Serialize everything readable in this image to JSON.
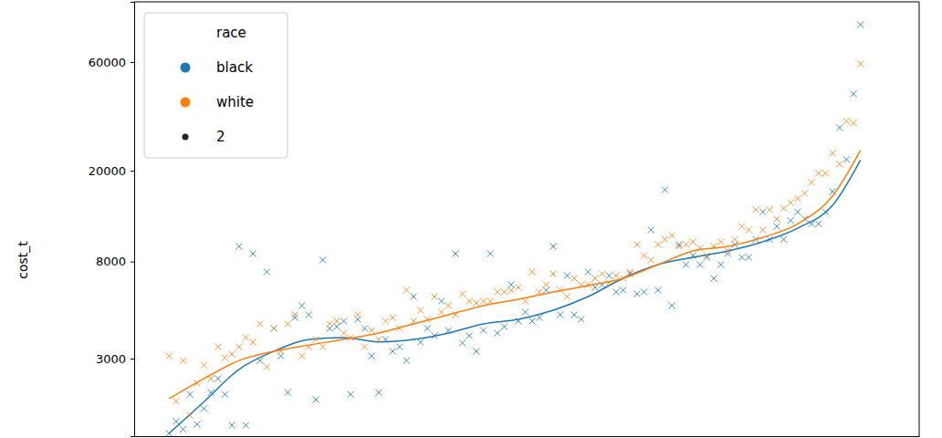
{
  "chart_data": {
    "type": "scatter",
    "y_label": "cost_t",
    "legend_title": "race",
    "legend": "upper left",
    "size": 2,
    "log": "y",
    "grid": false,
    "tick_labels": "y",
    "xlim": [
      -5,
      107.4
    ],
    "ylim": [
      1370,
      110200
    ],
    "yticks": [
      3000,
      8000,
      20000,
      60000
    ],
    "x": [
      0,
      1,
      2,
      3,
      4,
      5,
      6,
      7,
      8,
      9,
      10,
      11,
      12,
      13,
      14,
      15,
      16,
      17,
      18,
      19,
      20,
      21,
      22,
      23,
      24,
      25,
      26,
      27,
      28,
      29,
      30,
      31,
      32,
      33,
      34,
      35,
      36,
      37,
      38,
      39,
      40,
      41,
      42,
      43,
      44,
      45,
      46,
      47,
      48,
      49,
      50,
      51,
      52,
      53,
      54,
      55,
      56,
      57,
      58,
      59,
      60,
      61,
      62,
      63,
      64,
      65,
      66,
      67,
      68,
      69,
      70,
      71,
      72,
      73,
      74,
      75,
      76,
      77,
      78,
      79,
      80,
      81,
      82,
      83,
      84,
      85,
      86,
      87,
      88,
      89,
      90,
      91,
      92,
      93,
      94,
      95,
      96,
      97,
      98,
      99
    ],
    "trend_x": [
      0,
      5,
      10,
      15,
      20,
      25,
      30,
      35,
      40,
      45,
      50,
      55,
      60,
      65,
      70,
      75,
      80,
      85,
      90,
      95,
      99
    ],
    "series": [
      {
        "name": "black",
        "color": "#1f77b4",
        "marker": "x",
        "line_style": "solid",
        "values": [
          1410,
          1590,
          1470,
          2090,
          1545,
          1810,
          2130,
          2450,
          2090,
          1530,
          9320,
          1530,
          8660,
          2940,
          7200,
          4070,
          3080,
          2130,
          4540,
          5120,
          4670,
          1980,
          8120,
          4070,
          4140,
          4380,
          2090,
          4460,
          4070,
          3080,
          2130,
          3640,
          3230,
          3380,
          2940,
          5610,
          3540,
          4070,
          3780,
          5360,
          3990,
          8660,
          3510,
          3780,
          3230,
          3990,
          8660,
          3880,
          4140,
          6330,
          4380,
          4800,
          4380,
          4540,
          5990,
          9320,
          4670,
          6940,
          4670,
          4460,
          7200,
          6160,
          6330,
          6940,
          5880,
          5990,
          7070,
          5770,
          5880,
          11000,
          5990,
          16500,
          5120,
          9500,
          7750,
          8500,
          7750,
          8340,
          6750,
          7750,
          8660,
          9500,
          8340,
          8340,
          10000,
          13200,
          10000,
          11400,
          10000,
          12100,
          13200,
          12300,
          11700,
          11700,
          13200,
          16200,
          30900,
          22400,
          43500,
          87500
        ],
        "trend": [
          1410,
          1940,
          2690,
          3230,
          3640,
          3710,
          3550,
          3640,
          3880,
          4260,
          4460,
          4890,
          5610,
          6750,
          7750,
          8340,
          8900,
          9760,
          11200,
          14100,
          22300
        ]
      },
      {
        "name": "white",
        "color": "#ff7f0e",
        "marker": "x",
        "line_style": "solid",
        "values": [
          3080,
          1950,
          2940,
          1690,
          2340,
          2810,
          2450,
          3380,
          3030,
          3140,
          3380,
          3710,
          3540,
          4260,
          2760,
          4070,
          3230,
          4260,
          4670,
          3080,
          3380,
          3640,
          3380,
          4260,
          4380,
          3880,
          3710,
          4670,
          3380,
          3990,
          3640,
          4380,
          4540,
          4070,
          5990,
          4380,
          4890,
          4460,
          5610,
          4800,
          5120,
          4670,
          5770,
          5360,
          5260,
          5360,
          5360,
          5880,
          5880,
          5990,
          6160,
          5360,
          7200,
          5880,
          6330,
          7070,
          5990,
          5610,
          6750,
          6330,
          6330,
          6750,
          7070,
          6450,
          6940,
          6750,
          7200,
          9500,
          8500,
          8120,
          9500,
          10000,
          10400,
          9320,
          9500,
          9760,
          9150,
          8500,
          9320,
          9760,
          8900,
          10000,
          11400,
          11000,
          13500,
          11000,
          13500,
          12300,
          13700,
          14500,
          15100,
          15900,
          17800,
          19500,
          19500,
          23900,
          21400,
          33000,
          32400,
          58900
        ],
        "trend": [
          2000,
          2450,
          2940,
          3230,
          3440,
          3640,
          3880,
          4260,
          4670,
          5120,
          5460,
          5880,
          6270,
          6750,
          7750,
          8900,
          9320,
          10200,
          11700,
          15500,
          24600
        ]
      }
    ]
  }
}
